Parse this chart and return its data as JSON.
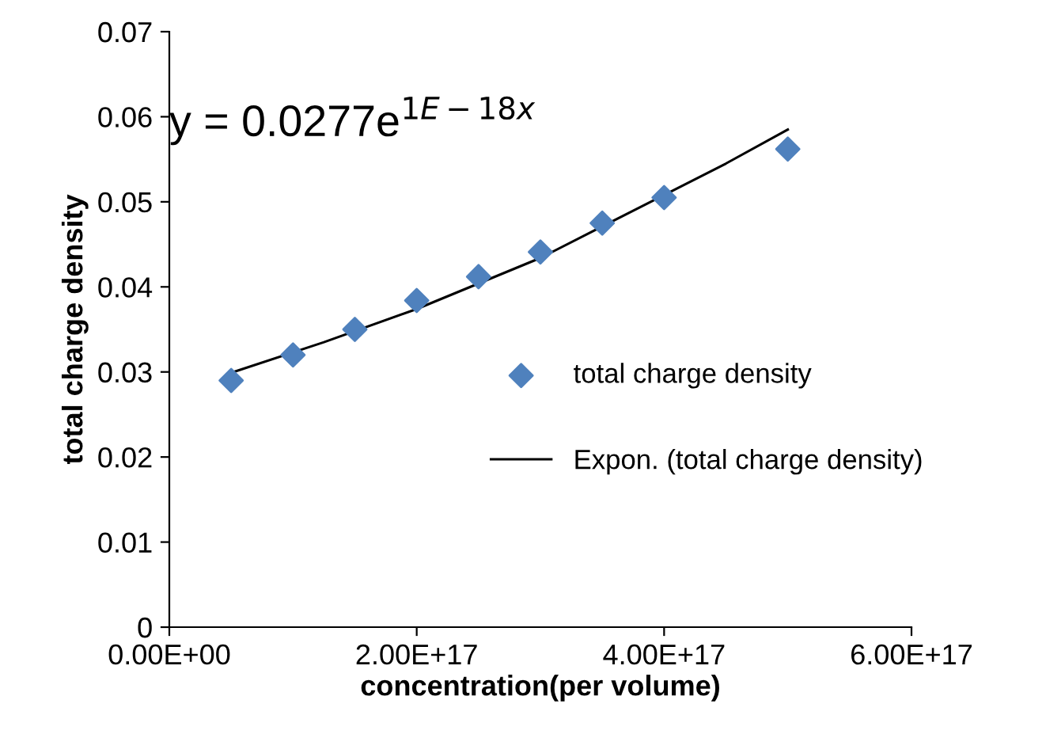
{
  "chart_data": {
    "type": "scatter",
    "xlabel": "concentration(per volume)",
    "ylabel": "total charge density",
    "series": [
      {
        "name": "total charge density",
        "color": "#4f81bd",
        "marker": "diamond",
        "x": [
          5e+16,
          1e+17,
          1.5e+17,
          2e+17,
          2.5e+17,
          3e+17,
          3.5e+17,
          4e+17,
          5e+17
        ],
        "values": [
          0.029,
          0.032,
          0.035,
          0.0384,
          0.0412,
          0.0441,
          0.0475,
          0.0505,
          0.0562
        ]
      },
      {
        "name": "Expon. (total charge density)",
        "type": "line",
        "color": "#000000",
        "marker": "none",
        "x": [
          5e+16,
          1.25e+17,
          2e+17,
          3e+17,
          4.5e+17,
          5e+17
        ],
        "values": [
          0.0299,
          0.0335,
          0.0374,
          0.0434,
          0.0545,
          0.0585
        ]
      }
    ],
    "annotations": [
      "y = 0.0277e$^{1E−18x}$"
    ],
    "xlim": [
      0,
      6e+17
    ],
    "xticks": [
      {
        "value": 0,
        "label": "0.00E+00"
      },
      {
        "value": 2e+17,
        "label": "2.00E+17"
      },
      {
        "value": 4e+17,
        "label": "4.00E+17"
      },
      {
        "value": 6e+17,
        "label": "6.00E+17"
      }
    ],
    "ylim": [
      0,
      0.07
    ],
    "yticks": [
      {
        "value": 0,
        "label": "0"
      },
      {
        "value": 0.01,
        "label": "0.01"
      },
      {
        "value": 0.02,
        "label": "0.02"
      },
      {
        "value": 0.03,
        "label": "0.03"
      },
      {
        "value": 0.04,
        "label": "0.04"
      },
      {
        "value": 0.05,
        "label": "0.05"
      },
      {
        "value": 0.06,
        "label": "0.06"
      },
      {
        "value": 0.07,
        "label": "0.07"
      }
    ],
    "grid": false,
    "legend": "right"
  }
}
